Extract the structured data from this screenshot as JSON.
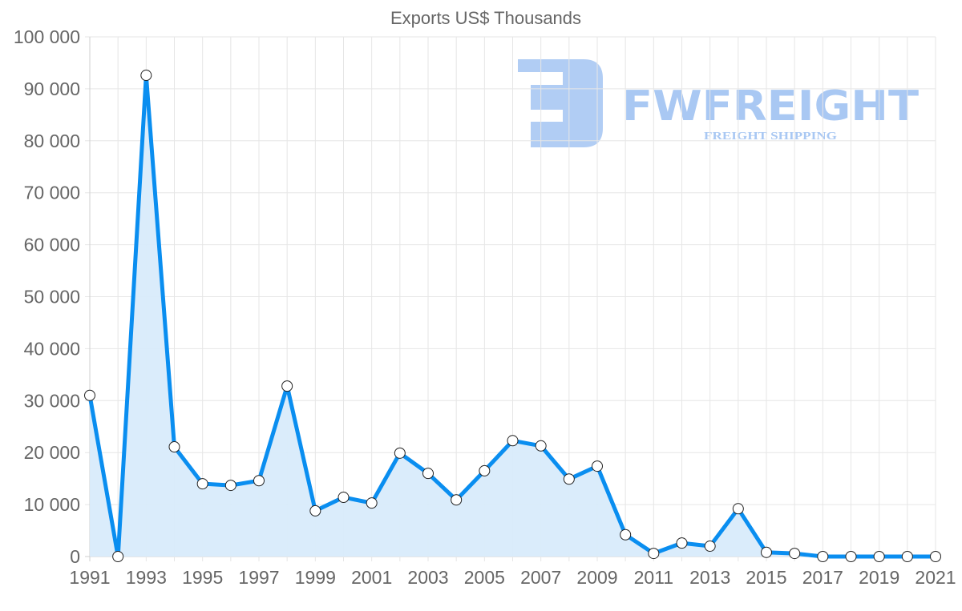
{
  "chart_data": {
    "type": "area",
    "title": "Exports US$ Thousands",
    "xlabel": "",
    "ylabel": "",
    "ylim": [
      0,
      100000
    ],
    "grid": true,
    "legend": null,
    "x_tick_labels": [
      "1991",
      "1993",
      "1995",
      "1997",
      "1999",
      "2001",
      "2003",
      "2005",
      "2007",
      "2009",
      "2011",
      "2013",
      "2015",
      "2017",
      "2019",
      "2021"
    ],
    "y_tick_labels": [
      "0",
      "10 000",
      "20 000",
      "30 000",
      "40 000",
      "50 000",
      "60 000",
      "70 000",
      "80 000",
      "90 000",
      "100 000"
    ],
    "categories": [
      "1991",
      "1992",
      "1993",
      "1994",
      "1995",
      "1996",
      "1997",
      "1998",
      "1999",
      "2000",
      "2001",
      "2002",
      "2003",
      "2004",
      "2005",
      "2006",
      "2007",
      "2008",
      "2009",
      "2010",
      "2011",
      "2012",
      "2013",
      "2014",
      "2015",
      "2016",
      "2017",
      "2018",
      "2019",
      "2020",
      "2021"
    ],
    "series": [
      {
        "name": "Exports US$ Thousands",
        "color": "#0a8ef0",
        "fill": "#d8ebfb",
        "values": [
          31000,
          0,
          92600,
          21100,
          14000,
          13700,
          14600,
          32800,
          8800,
          11400,
          10300,
          19900,
          16000,
          10900,
          16500,
          22300,
          21300,
          14900,
          17400,
          4200,
          600,
          2600,
          2000,
          9200,
          800,
          600,
          0,
          0,
          0,
          0,
          0
        ]
      }
    ]
  },
  "watermark": {
    "brand": "FWFREIGHT",
    "tagline": "FREIGHT SHIPPING",
    "color": "#a9c8f3"
  }
}
